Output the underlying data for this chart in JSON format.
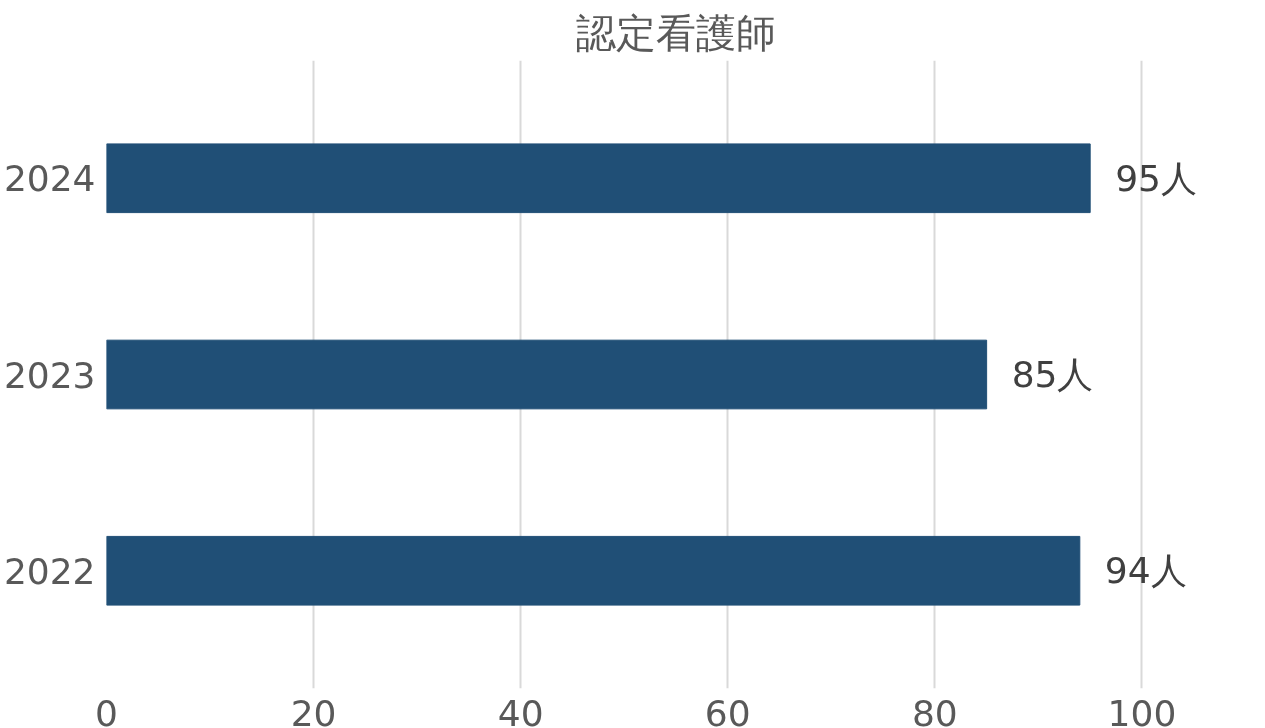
{
  "chart_data": {
    "type": "bar",
    "orientation": "horizontal",
    "title": "認定看護師",
    "categories": [
      "2024",
      "2023",
      "2022"
    ],
    "series": [
      {
        "color": "#204f76",
        "values": [
          95,
          85,
          94
        ],
        "value_labels": [
          "95人",
          "85人",
          "94人"
        ]
      }
    ],
    "xlim": [
      0,
      100
    ],
    "xticks": [
      0,
      20,
      40,
      60,
      80,
      100
    ],
    "grid": "x"
  }
}
